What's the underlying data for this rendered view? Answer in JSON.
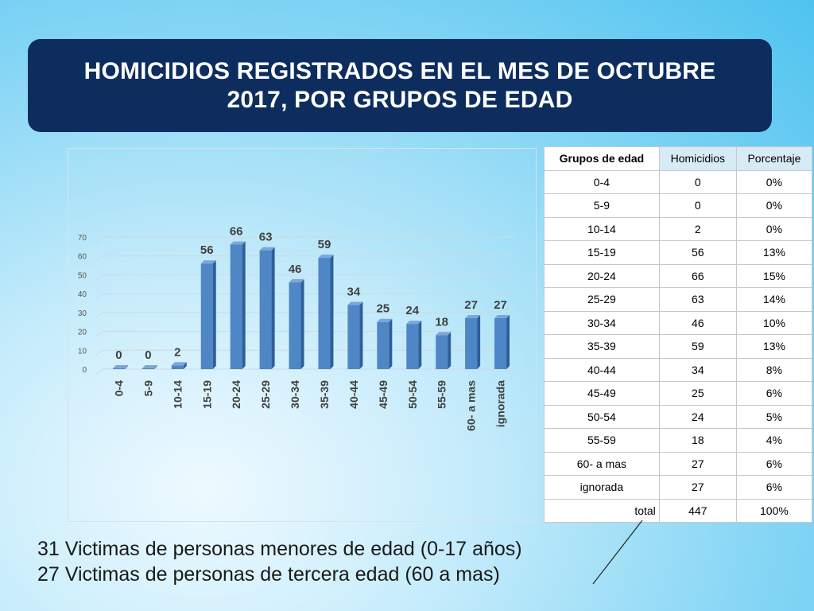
{
  "title": {
    "line1": "HOMICIDIOS REGISTRADOS EN EL MES DE OCTUBRE",
    "line2": "2017, POR GRUPOS DE EDAD"
  },
  "chart_data": {
    "type": "bar",
    "categories": [
      "0-4",
      "5-9",
      "10-14",
      "15-19",
      "20-24",
      "25-29",
      "30-34",
      "35-39",
      "40-44",
      "45-49",
      "50-54",
      "55-59",
      "60- a mas",
      "ignorada"
    ],
    "values": [
      0,
      0,
      2,
      56,
      66,
      63,
      46,
      59,
      34,
      25,
      24,
      18,
      27,
      27
    ],
    "ylim": [
      0,
      70
    ],
    "yticks": [
      0,
      10,
      20,
      30,
      40,
      50,
      60,
      70
    ],
    "grid": true,
    "bar_color": "#4f86c6"
  },
  "table": {
    "headers": [
      "Grupos de edad",
      "Homicidios",
      "Porcentaje"
    ],
    "rows": [
      [
        "0-4",
        "0",
        "0%"
      ],
      [
        "5-9",
        "0",
        "0%"
      ],
      [
        "10-14",
        "2",
        "0%"
      ],
      [
        "15-19",
        "56",
        "13%"
      ],
      [
        "20-24",
        "66",
        "15%"
      ],
      [
        "25-29",
        "63",
        "14%"
      ],
      [
        "30-34",
        "46",
        "10%"
      ],
      [
        "35-39",
        "59",
        "13%"
      ],
      [
        "40-44",
        "34",
        "8%"
      ],
      [
        "45-49",
        "25",
        "6%"
      ],
      [
        "50-54",
        "24",
        "5%"
      ],
      [
        "55-59",
        "18",
        "4%"
      ],
      [
        "60- a mas",
        "27",
        "6%"
      ],
      [
        "ignorada",
        "27",
        "6%"
      ]
    ],
    "total": [
      "total",
      "447",
      "100%"
    ]
  },
  "footer": {
    "line1": "31 Victimas de personas menores de edad (0-17 años)",
    "line2": "27 Victimas de personas de tercera edad (60 a mas)"
  }
}
